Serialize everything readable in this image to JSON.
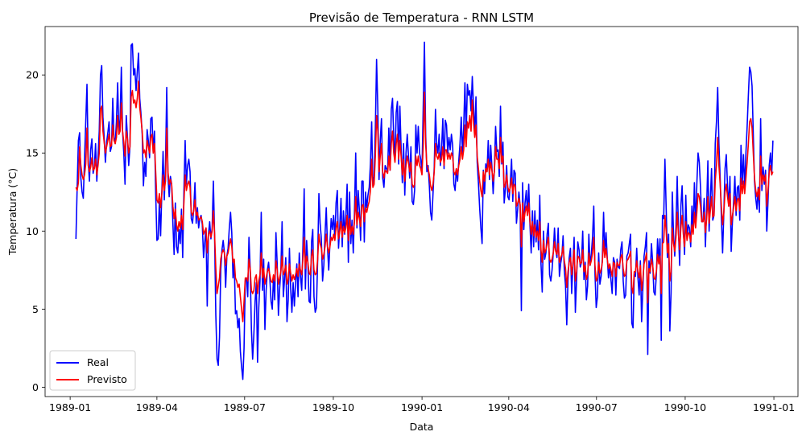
{
  "chart_data": {
    "type": "line",
    "title": "Previsão de Temperatura - RNN LSTM",
    "xlabel": "Data",
    "ylabel": "Temperatura (°C)",
    "x_ticks": [
      "1989-01",
      "1989-04",
      "1989-07",
      "1989-10",
      "1990-01",
      "1990-04",
      "1990-07",
      "1990-10",
      "1991-01"
    ],
    "y_ticks": [
      0,
      5,
      10,
      15,
      20
    ],
    "xlim": [
      "1988-12-06",
      "1991-01-26"
    ],
    "ylim": [
      -0.6,
      23.1
    ],
    "grid": false,
    "legend_position": "lower-left",
    "colors": {
      "Real": "#0000ff",
      "Previsto": "#ff0000"
    },
    "date_range": [
      "1989-01-07",
      "1990-12-31"
    ],
    "series": [
      {
        "name": "Real",
        "values": [
          9.5,
          12.8,
          15.8,
          16.3,
          13.4,
          12.5,
          12.1,
          14.6,
          17.0,
          19.4,
          14.5,
          13.2,
          15.2,
          15.9,
          13.7,
          14.1,
          15.6,
          13.2,
          14.7,
          16.4,
          20.0,
          20.6,
          17.3,
          16.0,
          14.4,
          15.7,
          16.3,
          17.0,
          15.1,
          15.4,
          18.5,
          16.0,
          15.6,
          17.0,
          19.5,
          16.2,
          17.2,
          20.5,
          16.4,
          15.0,
          13.0,
          17.4,
          16.0,
          14.2,
          15.4,
          21.9,
          22.0,
          20.0,
          20.4,
          19.0,
          20.2,
          21.4,
          18.5,
          17.5,
          16.2,
          12.9,
          14.4,
          13.5,
          16.5,
          15.8,
          14.7,
          17.2,
          17.3,
          15.0,
          16.4,
          12.4,
          9.4,
          9.5,
          11.9,
          9.7,
          12.5,
          15.1,
          12.0,
          14.3,
          19.2,
          13.5,
          12.2,
          13.5,
          13.0,
          10.5,
          8.5,
          11.8,
          9.0,
          8.6,
          10.1,
          9.2,
          11.4,
          8.3,
          12.6,
          15.8,
          13.0,
          14.2,
          14.6,
          13.8,
          10.8,
          10.5,
          11.4,
          13.1,
          10.5,
          11.5,
          10.2,
          10.8,
          11.0,
          10.4,
          8.3,
          9.3,
          10.2,
          5.2,
          9.8,
          10.6,
          9.5,
          10.2,
          13.2,
          9.7,
          4.6,
          1.8,
          1.4,
          3.2,
          7.5,
          8.8,
          9.4,
          8.6,
          6.4,
          8.4,
          8.9,
          10.2,
          11.2,
          9.9,
          7.0,
          8.1,
          4.7,
          4.9,
          3.8,
          4.4,
          2.3,
          1.3,
          0.5,
          2.5,
          6.8,
          7.0,
          5.8,
          9.6,
          7.6,
          3.7,
          1.8,
          3.4,
          5.5,
          6.7,
          1.6,
          5.1,
          6.8,
          11.2,
          6.2,
          8.2,
          3.7,
          6.2,
          7.5,
          8.0,
          7.0,
          5.5,
          5.0,
          7.1,
          5.6,
          9.9,
          7.9,
          4.6,
          6.3,
          7.5,
          10.6,
          5.8,
          6.9,
          8.3,
          4.2,
          5.6,
          8.9,
          6.3,
          4.8,
          6.7,
          5.2,
          6.7,
          7.9,
          5.8,
          8.6,
          7.1,
          6.2,
          9.1,
          12.7,
          6.3,
          9.4,
          8.0,
          5.5,
          5.4,
          9.3,
          10.1,
          5.8,
          4.8,
          5.1,
          8.2,
          12.4,
          10.5,
          9.5,
          6.8,
          7.8,
          9.8,
          11.5,
          9.0,
          7.5,
          9.2,
          10.8,
          10.1,
          11.0,
          9.5,
          11.8,
          12.6,
          8.9,
          10.3,
          12.1,
          9.0,
          11.3,
          9.8,
          11.0,
          13.0,
          8.0,
          12.5,
          9.2,
          10.7,
          8.6,
          11.2,
          15.0,
          10.2,
          12.6,
          11.3,
          9.4,
          13.2,
          13.2,
          9.3,
          12.5,
          11.5,
          12.3,
          12.8,
          14.3,
          17.0,
          12.9,
          13.5,
          16.5,
          21.0,
          17.9,
          13.3,
          15.8,
          17.2,
          13.4,
          12.8,
          14.2,
          14.0,
          13.8,
          16.6,
          13.9,
          17.8,
          18.5,
          16.0,
          14.5,
          17.6,
          18.3,
          14.3,
          18.0,
          15.3,
          13.1,
          15.6,
          12.3,
          15.0,
          16.2,
          14.8,
          13.4,
          15.4,
          11.9,
          11.7,
          12.6,
          16.8,
          15.0,
          16.7,
          15.0,
          14.6,
          13.7,
          17.9,
          22.1,
          16.2,
          13.8,
          14.2,
          12.9,
          11.2,
          10.7,
          12.4,
          14.1,
          17.8,
          15.6,
          15.0,
          16.2,
          14.2,
          15.3,
          17.2,
          14.0,
          17.1,
          16.8,
          15.0,
          16.0,
          15.2,
          16.2,
          15.5,
          13.0,
          12.6,
          14.0,
          13.2,
          14.5,
          15.6,
          17.3,
          15.0,
          16.6,
          19.5,
          16.1,
          19.4,
          18.7,
          19.0,
          17.7,
          19.9,
          18.0,
          16.2,
          18.6,
          14.4,
          13.1,
          11.5,
          10.2,
          9.2,
          13.9,
          12.4,
          14.3,
          13.8,
          15.8,
          13.3,
          15.5,
          14.1,
          12.4,
          13.9,
          16.7,
          15.1,
          15.2,
          13.5,
          18.0,
          14.3,
          15.7,
          11.8,
          12.7,
          14.2,
          12.2,
          12.0,
          13.1,
          14.6,
          11.9,
          13.9,
          13.7,
          10.5,
          11.4,
          12.5,
          11.6,
          4.9,
          13.1,
          10.1,
          11.8,
          12.6,
          11.0,
          13.0,
          10.4,
          8.6,
          11.3,
          9.0,
          11.3,
          9.3,
          10.7,
          8.8,
          12.3,
          7.9,
          6.1,
          10.0,
          8.2,
          8.6,
          9.8,
          10.5,
          7.2,
          6.8,
          7.5,
          8.6,
          10.2,
          8.8,
          8.3,
          10.2,
          7.1,
          7.9,
          8.4,
          9.7,
          7.5,
          6.5,
          4.0,
          6.9,
          8.3,
          8.9,
          6.0,
          7.8,
          9.6,
          4.8,
          6.9,
          9.3,
          8.8,
          7.7,
          8.0,
          10.0,
          6.9,
          8.0,
          5.6,
          6.5,
          9.8,
          7.8,
          8.5,
          9.6,
          11.6,
          7.3,
          5.1,
          5.8,
          8.6,
          6.6,
          7.1,
          8.2,
          11.2,
          8.5,
          9.9,
          8.3,
          7.0,
          7.8,
          6.9,
          6.0,
          8.3,
          8.0,
          5.9,
          8.2,
          7.7,
          7.6,
          8.8,
          9.3,
          6.8,
          5.7,
          5.9,
          8.4,
          8.6,
          9.2,
          9.8,
          4.1,
          3.8,
          7.2,
          7.1,
          8.9,
          7.0,
          5.9,
          8.1,
          4.2,
          6.3,
          8.4,
          9.0,
          9.9,
          2.1,
          8.1,
          7.3,
          9.2,
          8.0,
          6.1,
          5.9,
          7.2,
          9.5,
          8.0,
          9.5,
          3.0,
          11.0,
          10.8,
          14.6,
          11.5,
          8.3,
          9.8,
          3.6,
          6.0,
          12.5,
          9.8,
          8.4,
          10.3,
          13.5,
          10.1,
          7.8,
          11.6,
          12.9,
          10.2,
          8.5,
          12.3,
          9.5,
          10.4,
          10.2,
          9.0,
          11.6,
          9.9,
          13.1,
          10.3,
          13.0,
          15.0,
          14.4,
          12.8,
          10.6,
          10.6,
          12.1,
          9.0,
          11.5,
          14.5,
          10.0,
          12.0,
          14.0,
          10.7,
          11.0,
          15.6,
          17.0,
          19.2,
          15.6,
          13.4,
          10.9,
          8.6,
          11.2,
          14.0,
          14.9,
          12.9,
          11.6,
          13.5,
          8.7,
          10.6,
          11.9,
          13.5,
          11.0,
          12.8,
          12.9,
          10.7,
          15.5,
          13.0,
          14.9,
          12.8,
          15.0,
          16.7,
          18.7,
          20.5,
          20.2,
          19.3,
          16.2,
          13.2,
          12.1,
          11.4,
          12.8,
          11.2,
          17.2,
          12.6,
          14.1,
          13.0,
          13.9,
          10.0,
          11.9,
          14.2,
          15.0,
          13.6,
          15.8
        ]
      },
      {
        "name": "Previsto",
        "values": [
          12.8,
          12.6,
          13.1,
          15.4,
          14.2,
          13.6,
          13.3,
          13.6,
          14.3,
          16.6,
          14.2,
          13.8,
          14.1,
          14.7,
          13.9,
          14.0,
          14.6,
          13.6,
          14.2,
          15.0,
          17.8,
          18.0,
          16.4,
          15.7,
          15.0,
          15.4,
          15.8,
          16.2,
          15.4,
          15.5,
          16.8,
          15.8,
          15.6,
          16.0,
          17.4,
          16.2,
          16.4,
          18.2,
          16.4,
          15.7,
          14.8,
          16.4,
          15.9,
          15.0,
          15.4,
          18.6,
          19.0,
          18.2,
          18.4,
          17.9,
          18.5,
          19.6,
          17.9,
          17.2,
          16.4,
          15.0,
          15.2,
          14.7,
          15.8,
          15.4,
          15.0,
          16.0,
          16.2,
          15.0,
          15.6,
          13.8,
          12.0,
          11.8,
          12.4,
          11.5,
          12.4,
          13.6,
          12.6,
          13.2,
          16.6,
          13.8,
          13.0,
          13.3,
          13.0,
          11.6,
          10.8,
          11.4,
          10.4,
          10.0,
          10.6,
          10.2,
          11.0,
          10.1,
          11.8,
          13.6,
          12.6,
          13.0,
          13.2,
          12.8,
          11.2,
          11.0,
          11.3,
          12.0,
          11.0,
          11.2,
          10.7,
          10.8,
          10.9,
          10.6,
          9.8,
          10.0,
          10.2,
          8.6,
          9.8,
          10.0,
          9.6,
          10.0,
          11.3,
          9.8,
          7.6,
          6.0,
          6.5,
          7.0,
          8.2,
          8.6,
          8.8,
          8.6,
          7.8,
          8.4,
          8.6,
          9.1,
          9.5,
          9.0,
          8.0,
          8.2,
          7.0,
          6.8,
          6.4,
          6.6,
          5.8,
          5.0,
          4.2,
          5.5,
          7.0,
          7.0,
          6.8,
          8.2,
          7.6,
          6.2,
          6.0,
          6.2,
          7.0,
          7.2,
          6.0,
          6.8,
          7.2,
          8.6,
          7.0,
          7.6,
          6.6,
          7.0,
          7.4,
          7.6,
          7.2,
          6.8,
          6.7,
          7.2,
          6.8,
          8.1,
          7.5,
          6.6,
          7.0,
          7.4,
          8.4,
          7.2,
          7.4,
          7.8,
          6.6,
          6.9,
          7.9,
          7.3,
          6.8,
          7.2,
          6.9,
          7.2,
          7.6,
          7.1,
          7.9,
          7.5,
          7.2,
          8.2,
          9.6,
          7.6,
          8.4,
          8.0,
          7.3,
          7.2,
          8.4,
          8.8,
          7.5,
          7.2,
          7.3,
          8.2,
          9.8,
          9.2,
          8.9,
          8.2,
          8.5,
          9.0,
          9.8,
          9.0,
          8.6,
          9.0,
          9.6,
          9.4,
          9.8,
          9.4,
          10.2,
          10.6,
          9.5,
          10.0,
          10.6,
          9.6,
          10.3,
          9.9,
          10.2,
          11.0,
          9.4,
          10.8,
          9.8,
          10.3,
          9.8,
          10.6,
          12.2,
          10.4,
          11.2,
          10.8,
          10.3,
          11.6,
          11.7,
          10.6,
          11.5,
          11.2,
          11.6,
          11.9,
          12.6,
          14.6,
          12.8,
          13.0,
          14.8,
          17.4,
          16.4,
          13.8,
          14.8,
          15.6,
          13.8,
          13.4,
          13.9,
          13.8,
          13.7,
          14.8,
          13.9,
          15.6,
          16.4,
          15.0,
          14.4,
          15.6,
          16.2,
          14.6,
          15.8,
          14.8,
          13.6,
          14.6,
          13.2,
          14.2,
          14.8,
          14.4,
          13.8,
          14.4,
          13.0,
          12.8,
          13.0,
          14.8,
          14.2,
          14.8,
          14.2,
          14.0,
          13.6,
          15.4,
          18.9,
          15.6,
          14.2,
          14.0,
          13.6,
          12.9,
          12.6,
          13.0,
          13.8,
          15.6,
          14.8,
          14.6,
          15.0,
          14.4,
          14.6,
          15.4,
          14.2,
          15.2,
          15.2,
          14.6,
          15.0,
          14.6,
          15.0,
          14.8,
          13.8,
          13.6,
          14.0,
          13.6,
          14.2,
          14.6,
          15.4,
          14.6,
          15.2,
          16.8,
          15.4,
          17.0,
          16.6,
          17.4,
          16.4,
          18.4,
          17.0,
          16.0,
          16.8,
          14.8,
          14.0,
          13.2,
          12.6,
          12.2,
          13.8,
          13.2,
          14.0,
          13.8,
          14.6,
          13.6,
          14.4,
          13.9,
          13.2,
          13.8,
          15.4,
          14.6,
          14.6,
          14.0,
          16.0,
          14.4,
          14.8,
          12.8,
          13.0,
          13.6,
          12.8,
          12.5,
          12.8,
          13.4,
          12.4,
          13.0,
          12.9,
          11.6,
          11.8,
          12.1,
          11.7,
          9.0,
          11.8,
          10.6,
          11.2,
          11.6,
          11.0,
          11.8,
          10.6,
          9.8,
          10.6,
          9.7,
          10.4,
          9.6,
          10.0,
          9.4,
          10.6,
          8.8,
          8.0,
          9.4,
          8.6,
          8.8,
          9.2,
          9.6,
          8.2,
          8.0,
          8.2,
          8.6,
          9.3,
          8.7,
          8.5,
          9.2,
          8.0,
          8.3,
          8.5,
          9.0,
          8.1,
          7.6,
          6.4,
          7.4,
          8.0,
          8.3,
          7.2,
          7.9,
          8.8,
          6.8,
          7.4,
          8.4,
          8.3,
          7.9,
          8.0,
          8.8,
          7.4,
          7.8,
          6.9,
          7.2,
          8.6,
          7.8,
          8.1,
          8.6,
          9.6,
          7.8,
          6.8,
          7.0,
          8.0,
          7.3,
          7.5,
          8.0,
          9.4,
          8.3,
          8.9,
          8.2,
          7.6,
          7.9,
          7.5,
          7.1,
          8.0,
          7.9,
          7.1,
          8.0,
          7.8,
          7.8,
          8.3,
          8.5,
          7.6,
          7.1,
          7.2,
          8.1,
          8.2,
          8.4,
          8.7,
          6.4,
          6.0,
          7.4,
          7.4,
          8.1,
          7.4,
          7.0,
          7.8,
          6.2,
          6.9,
          7.9,
          8.2,
          8.6,
          5.4,
          7.6,
          7.4,
          8.2,
          7.8,
          7.0,
          6.9,
          7.4,
          8.5,
          7.9,
          8.4,
          6.0,
          9.2,
          9.3,
          11.0,
          10.0,
          8.6,
          9.2,
          6.8,
          7.4,
          10.2,
          9.2,
          8.7,
          9.6,
          11.2,
          9.8,
          8.8,
          10.2,
          11.0,
          9.8,
          9.0,
          10.6,
          9.4,
          9.9,
          9.8,
          9.3,
          10.4,
          9.8,
          11.2,
          10.2,
          11.2,
          12.4,
          12.2,
          11.6,
          10.6,
          10.6,
          11.2,
          9.9,
          10.8,
          12.2,
          10.5,
          11.3,
          12.2,
          10.9,
          11.0,
          13.2,
          14.2,
          16.0,
          14.2,
          13.0,
          11.6,
          10.4,
          11.2,
          12.5,
          13.0,
          12.2,
          11.6,
          12.4,
          10.4,
          11.0,
          11.5,
          12.2,
          11.3,
          12.0,
          12.1,
          11.3,
          13.4,
          12.4,
          13.2,
          12.4,
          13.4,
          14.4,
          15.6,
          17.0,
          17.2,
          16.6,
          15.0,
          13.4,
          12.6,
          12.2,
          12.7,
          12.0,
          14.8,
          13.0,
          13.6,
          13.2,
          13.6,
          11.6,
          12.6,
          13.8,
          14.2,
          13.6,
          13.8
        ]
      }
    ]
  }
}
